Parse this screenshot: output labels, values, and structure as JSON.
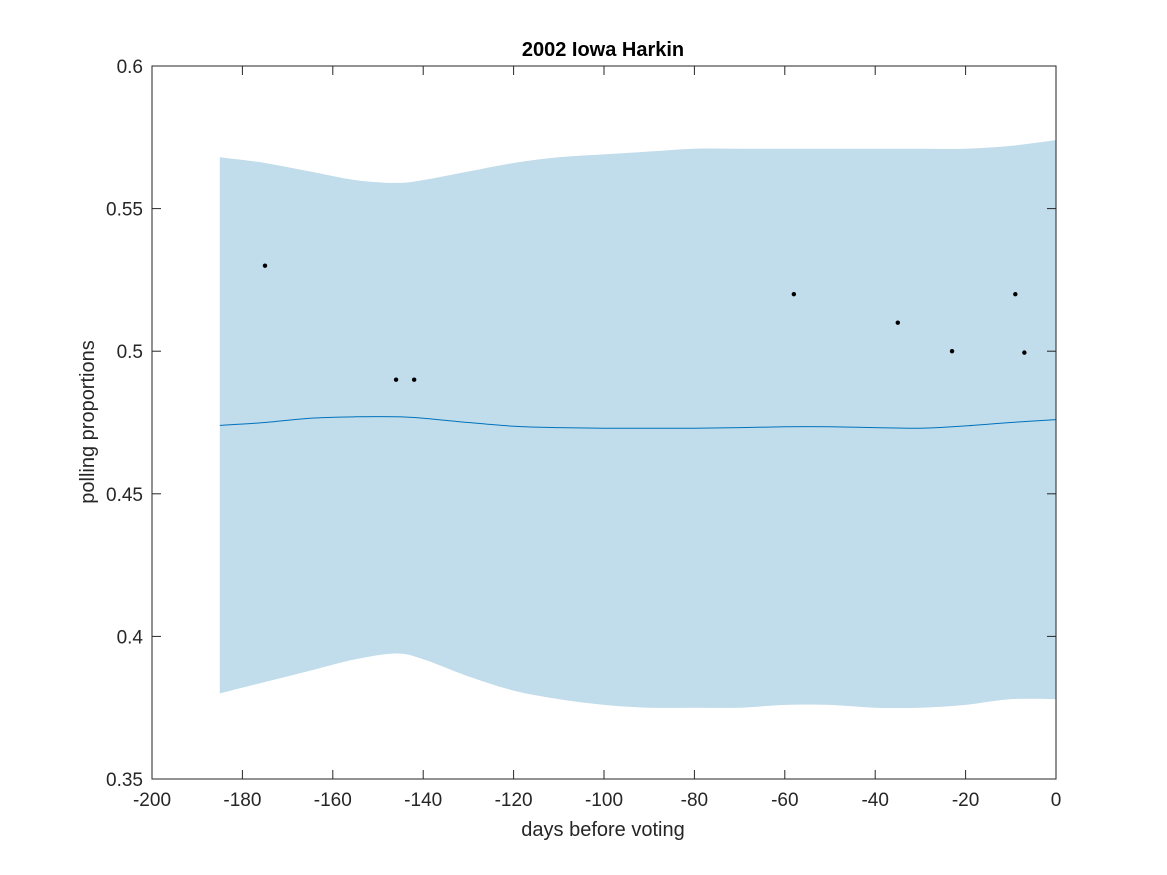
{
  "chart_data": {
    "type": "line",
    "title": "2002 Iowa Harkin",
    "xlabel": "days before voting",
    "ylabel": "polling proportions",
    "xlim": [
      -200,
      0
    ],
    "ylim": [
      0.35,
      0.6
    ],
    "xticks": [
      -200,
      -180,
      -160,
      -140,
      -120,
      -100,
      -80,
      -60,
      -40,
      -20,
      0
    ],
    "yticks": [
      0.35,
      0.4,
      0.45,
      0.5,
      0.55,
      0.6
    ],
    "xtick_labels": [
      "-200",
      "-180",
      "-160",
      "-140",
      "-120",
      "-100",
      "-80",
      "-60",
      "-40",
      "-20",
      "0"
    ],
    "ytick_labels": [
      "0.35",
      "0.4",
      "0.45",
      "0.5",
      "0.55",
      "0.6"
    ],
    "grid": false,
    "band": {
      "x": [
        -185,
        -175,
        -165,
        -155,
        -146,
        -140,
        -130,
        -120,
        -110,
        -100,
        -90,
        -80,
        -70,
        -60,
        -50,
        -40,
        -30,
        -20,
        -10,
        0
      ],
      "upper": [
        0.568,
        0.566,
        0.563,
        0.56,
        0.559,
        0.56,
        0.563,
        0.566,
        0.568,
        0.569,
        0.57,
        0.571,
        0.571,
        0.571,
        0.571,
        0.571,
        0.571,
        0.571,
        0.572,
        0.574
      ],
      "lower": [
        0.38,
        0.384,
        0.388,
        0.392,
        0.394,
        0.392,
        0.386,
        0.381,
        0.378,
        0.376,
        0.375,
        0.375,
        0.375,
        0.376,
        0.376,
        0.375,
        0.375,
        0.376,
        0.378,
        0.378
      ]
    },
    "mean_line": {
      "x": [
        -185,
        -175,
        -165,
        -155,
        -146,
        -140,
        -130,
        -120,
        -110,
        -100,
        -90,
        -80,
        -70,
        -60,
        -50,
        -40,
        -30,
        -20,
        -10,
        0
      ],
      "y": [
        0.474,
        0.475,
        0.4765,
        0.477,
        0.477,
        0.4765,
        0.475,
        0.4737,
        0.4732,
        0.473,
        0.473,
        0.473,
        0.4732,
        0.4735,
        0.4735,
        0.4732,
        0.473,
        0.4738,
        0.475,
        0.476
      ]
    },
    "points": {
      "x": [
        -175,
        -146,
        -142,
        -58,
        -35,
        -23,
        -9,
        -7
      ],
      "y": [
        0.53,
        0.49,
        0.49,
        0.52,
        0.51,
        0.5,
        0.52,
        0.4995
      ]
    },
    "colors": {
      "band": "#c1dcea",
      "line": "#0072bd",
      "points": "#000000",
      "axes": "#262626"
    }
  }
}
